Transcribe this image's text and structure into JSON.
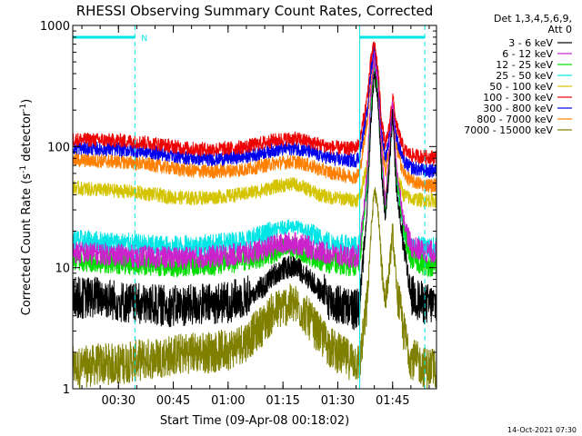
{
  "chart_data": {
    "type": "line",
    "title": "RHESSI Observing Summary Count Rates, Corrected",
    "xlabel": "Start Time (09-Apr-08 00:18:02)",
    "ylabel_parts": [
      "Corrected Count Rate (s",
      "-1",
      " detector",
      "-1",
      ")"
    ],
    "y_scale": "log",
    "xlim_minutes": [
      17.5,
      117.0
    ],
    "ylim": [
      1,
      1000
    ],
    "x_ticks": [
      {
        "minute": 30,
        "label": "00:30"
      },
      {
        "minute": 45,
        "label": "00:45"
      },
      {
        "minute": 60,
        "label": "01:00"
      },
      {
        "minute": 75,
        "label": "01:15"
      },
      {
        "minute": 90,
        "label": "01:30"
      },
      {
        "minute": 105,
        "label": "01:45"
      }
    ],
    "y_ticks": [
      {
        "value": 1,
        "label": "1"
      },
      {
        "value": 10,
        "label": "10"
      },
      {
        "value": 100,
        "label": "100"
      },
      {
        "value": 1000,
        "label": "1000"
      }
    ],
    "legend_header": [
      "Det 1,3,4,5,6,9,",
      "Att 0"
    ],
    "legend_placement": "right",
    "timestamp": "14-Oct-2021 07:30",
    "flag_label": "N",
    "flags": [
      {
        "start": 17.5,
        "end": 34.5
      },
      {
        "start": 96.0,
        "end": 113.8
      }
    ],
    "x_breaks": [
      {
        "minute": 34.5,
        "style": "dashed"
      },
      {
        "minute": 96.0,
        "style": "solid"
      },
      {
        "minute": 113.8,
        "style": "dashed"
      }
    ],
    "series": [
      {
        "name": "3 - 6 keV",
        "color": "#000000",
        "x": [
          17.5,
          20,
          25,
          30,
          34.5,
          40,
          45,
          50,
          55,
          60,
          65,
          70,
          72,
          75,
          78,
          80,
          82,
          85,
          88,
          92,
          95,
          96,
          98,
          99,
          100,
          101,
          102,
          103,
          104,
          105,
          106,
          108,
          110,
          113.8
        ],
        "y": [
          5.8,
          5.6,
          5.8,
          5.3,
          5.0,
          4.9,
          4.8,
          4.9,
          5.0,
          5.2,
          5.8,
          7.0,
          8.5,
          9.8,
          10.2,
          9.5,
          8.2,
          6.5,
          5.3,
          4.7,
          4.5,
          5.0,
          30,
          150,
          420,
          240,
          60,
          25,
          60,
          180,
          45,
          15,
          6,
          5
        ]
      },
      {
        "name": "6 - 12 keV",
        "color": "#cc22cc",
        "x": [
          17.5,
          20,
          25,
          30,
          34.5,
          40,
          45,
          50,
          55,
          60,
          65,
          70,
          72,
          75,
          78,
          80,
          82,
          85,
          88,
          92,
          95,
          96,
          98,
          99,
          100,
          101,
          102,
          103,
          104,
          105,
          106,
          108,
          110,
          113.8
        ],
        "y": [
          13.5,
          13.2,
          13.0,
          12.7,
          12.4,
          12.2,
          12.0,
          12.1,
          12.3,
          12.6,
          13.2,
          14.2,
          15.0,
          15.8,
          16.0,
          15.5,
          14.8,
          13.6,
          12.9,
          12.4,
          12.2,
          13,
          60,
          250,
          560,
          320,
          90,
          35,
          85,
          230,
          70,
          25,
          15,
          13.5
        ]
      },
      {
        "name": "12 - 25 keV",
        "color": "#00dd00",
        "x": [
          17.5,
          20,
          25,
          30,
          34.5,
          40,
          45,
          50,
          55,
          60,
          65,
          70,
          72,
          75,
          78,
          80,
          82,
          85,
          88,
          92,
          95,
          96,
          98,
          99,
          100,
          101,
          102,
          103,
          104,
          105,
          106,
          108,
          110,
          113.8
        ],
        "y": [
          11.8,
          11.5,
          11.2,
          11.0,
          10.8,
          10.6,
          10.4,
          10.5,
          10.7,
          11.0,
          11.6,
          12.6,
          13.3,
          14.0,
          14.3,
          13.8,
          13.0,
          11.8,
          11.1,
          10.7,
          10.5,
          11,
          50,
          220,
          500,
          290,
          80,
          30,
          75,
          210,
          60,
          20,
          12,
          10.5
        ]
      },
      {
        "name": "25 - 50 keV",
        "color": "#00e5e5",
        "x": [
          17.5,
          20,
          25,
          30,
          34.5,
          40,
          45,
          50,
          55,
          60,
          65,
          70,
          72,
          75,
          78,
          80,
          82,
          85,
          88,
          92,
          95,
          96,
          98,
          99,
          100,
          101,
          102,
          103,
          104,
          105,
          106,
          108,
          110,
          113.8
        ],
        "y": [
          16.8,
          16.5,
          16.2,
          15.8,
          15.4,
          15.0,
          14.8,
          15.0,
          15.3,
          15.8,
          16.8,
          18.5,
          20.0,
          21.5,
          22.0,
          21.0,
          19.5,
          17.2,
          16.0,
          15.2,
          14.8,
          15,
          45,
          180,
          420,
          250,
          70,
          28,
          65,
          190,
          55,
          20,
          15,
          14.5
        ]
      },
      {
        "name": "50 - 100 keV",
        "color": "#d4c400",
        "x": [
          17.5,
          20,
          25,
          30,
          34.5,
          40,
          45,
          50,
          55,
          60,
          65,
          70,
          72,
          75,
          78,
          80,
          82,
          85,
          88,
          92,
          95,
          96,
          98,
          99,
          100,
          101,
          102,
          103,
          104,
          105,
          106,
          108,
          110,
          113.8
        ],
        "y": [
          46,
          45,
          44,
          43,
          42,
          40,
          38,
          37.5,
          38,
          39,
          41,
          44,
          46,
          48,
          49,
          47,
          44,
          40,
          38,
          37,
          36,
          38,
          70,
          200,
          450,
          260,
          80,
          35,
          70,
          200,
          60,
          40,
          37,
          36
        ]
      },
      {
        "name": "100 - 300 keV",
        "color": "#ee0000",
        "x": [
          17.5,
          20,
          25,
          30,
          34.5,
          40,
          45,
          50,
          55,
          60,
          65,
          70,
          72,
          75,
          78,
          80,
          82,
          85,
          88,
          92,
          95,
          96,
          98,
          99,
          100,
          101,
          102,
          103,
          104,
          105,
          106,
          108,
          110,
          113.8
        ],
        "y": [
          115,
          114,
          113,
          112,
          110,
          106,
          100,
          96,
          95,
          96,
          100,
          108,
          112,
          115,
          116,
          114,
          110,
          104,
          99,
          96,
          98,
          110,
          250,
          500,
          720,
          420,
          160,
          100,
          140,
          260,
          150,
          95,
          85,
          82
        ]
      },
      {
        "name": "300 - 800 keV",
        "color": "#0000ee",
        "x": [
          17.5,
          20,
          25,
          30,
          34.5,
          40,
          45,
          50,
          55,
          60,
          65,
          70,
          72,
          75,
          78,
          80,
          82,
          85,
          88,
          92,
          95,
          96,
          98,
          99,
          100,
          101,
          102,
          103,
          104,
          105,
          106,
          108,
          110,
          113.8
        ],
        "y": [
          98,
          97,
          96,
          95,
          93,
          89,
          84,
          80,
          79,
          80,
          83,
          90,
          93,
          96,
          97,
          95,
          91,
          85,
          80,
          77,
          77,
          85,
          200,
          420,
          640,
          370,
          130,
          80,
          115,
          220,
          120,
          75,
          67,
          63
        ]
      },
      {
        "name": "800 - 7000 keV",
        "color": "#ff8000",
        "x": [
          17.5,
          20,
          25,
          30,
          34.5,
          40,
          45,
          50,
          55,
          60,
          65,
          70,
          72,
          75,
          78,
          80,
          82,
          85,
          88,
          92,
          95,
          96,
          98,
          99,
          100,
          101,
          102,
          103,
          104,
          105,
          106,
          108,
          110,
          113.8
        ],
        "y": [
          78,
          77,
          76,
          75,
          73,
          70,
          66,
          63,
          62,
          63,
          65,
          70,
          72,
          74,
          75,
          73,
          70,
          65,
          61,
          58,
          56,
          62,
          160,
          350,
          560,
          320,
          110,
          62,
          95,
          190,
          100,
          60,
          52,
          48
        ]
      },
      {
        "name": "7000 - 15000 keV",
        "color": "#808000",
        "x": [
          17.5,
          20,
          25,
          30,
          34.5,
          40,
          45,
          50,
          55,
          60,
          65,
          70,
          72,
          75,
          78,
          80,
          82,
          85,
          88,
          92,
          95,
          96,
          98,
          99,
          100,
          101,
          102,
          103,
          104,
          105,
          106,
          108,
          110,
          113.8
        ],
        "y": [
          1.5,
          1.5,
          1.6,
          1.6,
          1.7,
          1.8,
          1.9,
          2.0,
          2.0,
          2.1,
          2.5,
          3.5,
          4.2,
          4.8,
          5.0,
          4.5,
          3.8,
          2.8,
          2.2,
          1.8,
          1.7,
          1.6,
          5,
          18,
          45,
          30,
          10,
          5,
          9,
          20,
          7,
          3,
          1.8,
          1.5
        ]
      }
    ]
  }
}
